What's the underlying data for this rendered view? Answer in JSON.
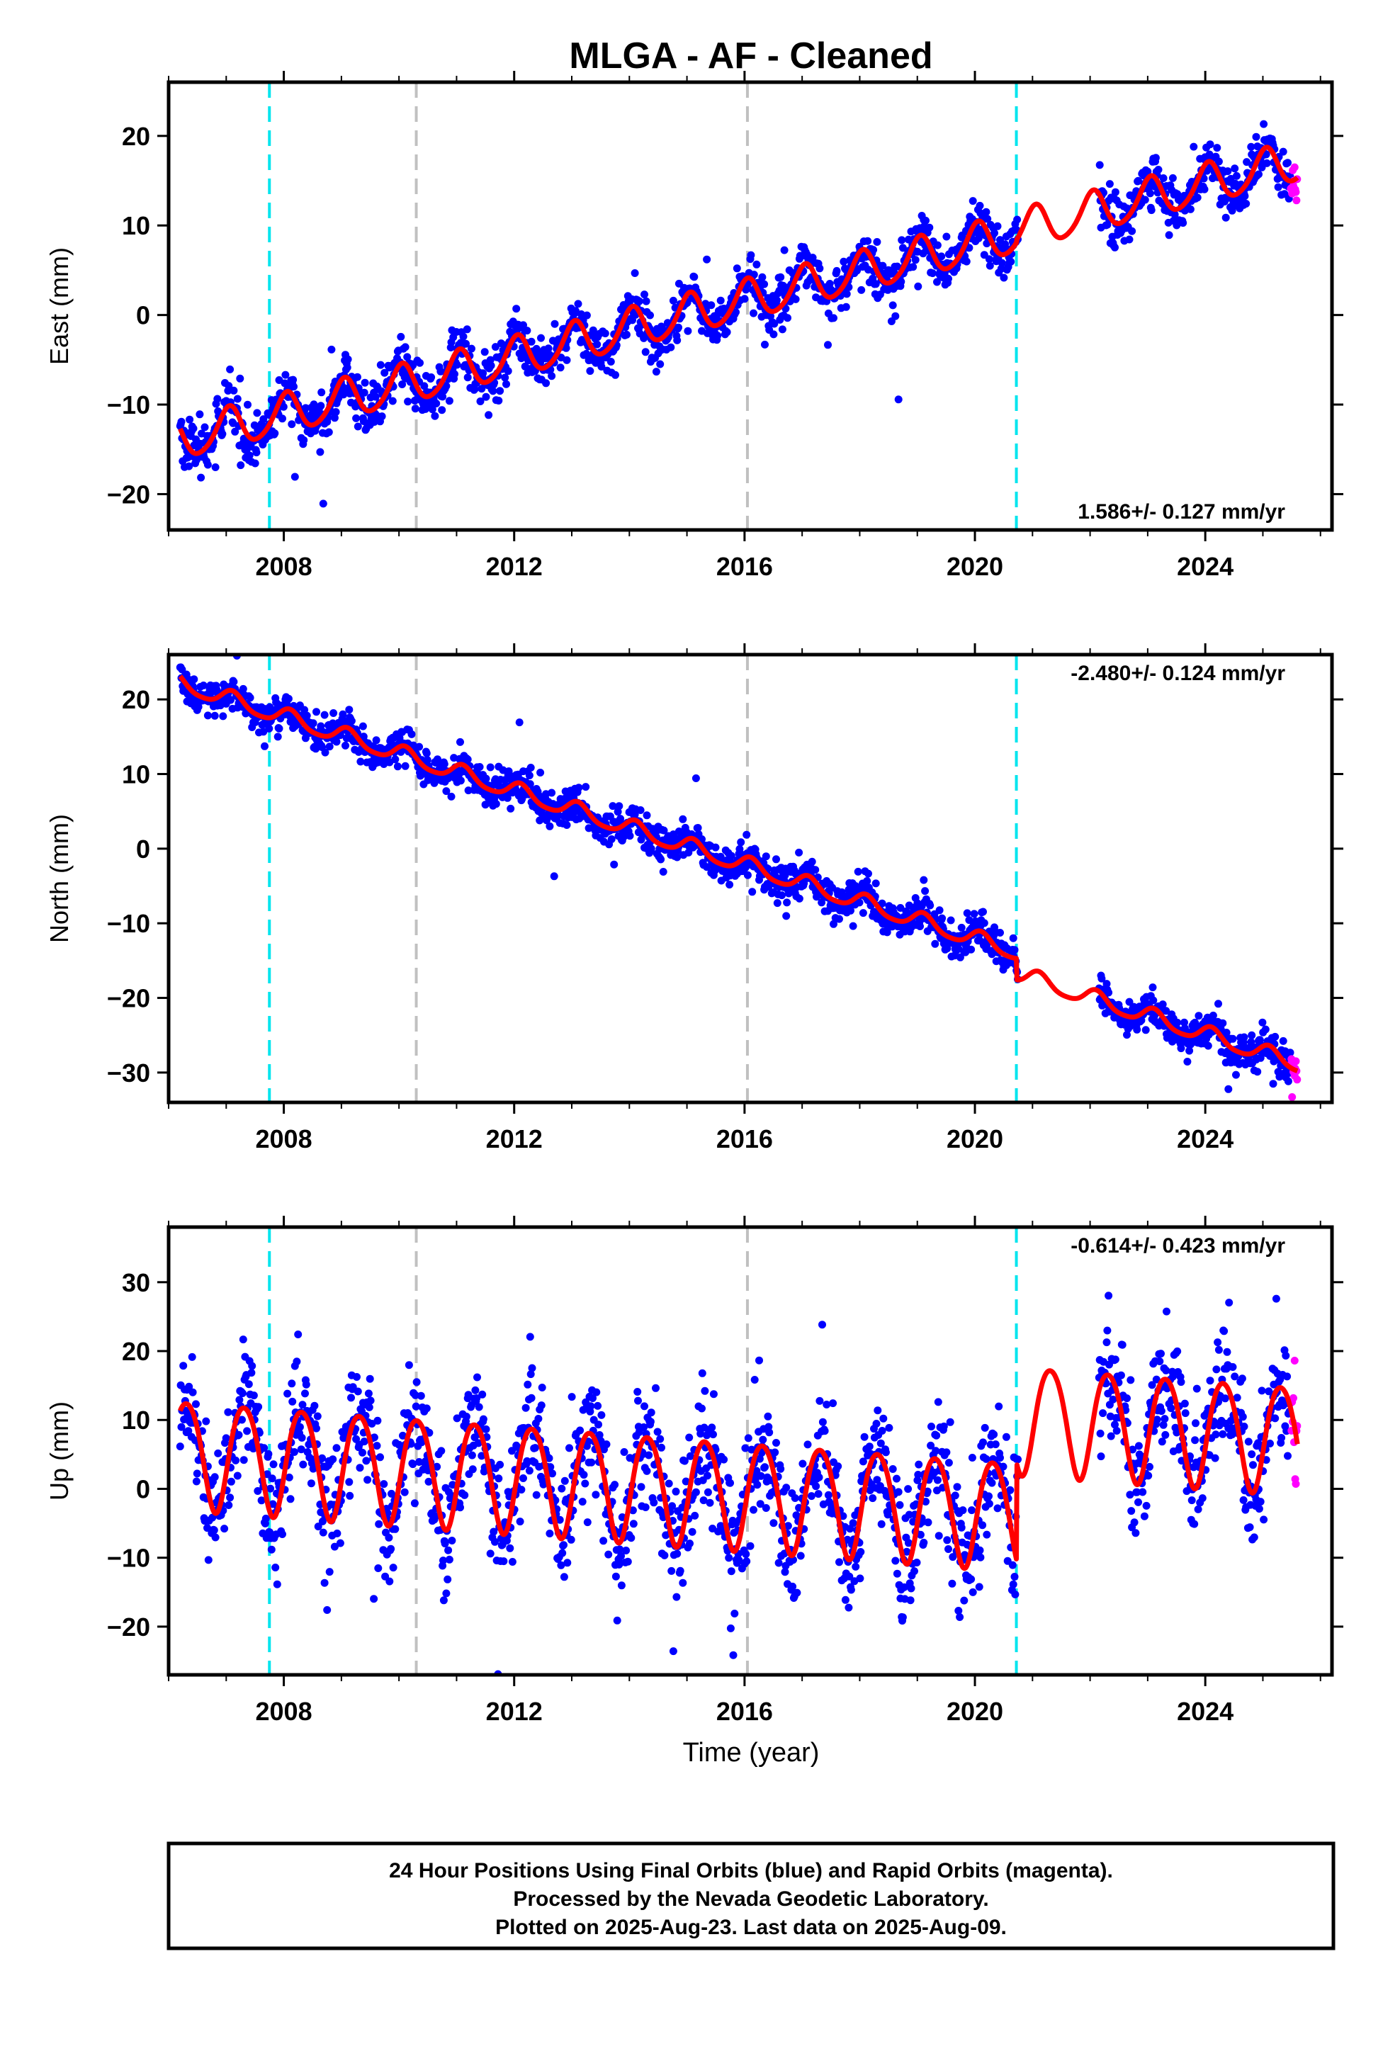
{
  "title": "MLGA  - AF - Cleaned",
  "footer": {
    "line1": "24 Hour Positions Using Final Orbits (blue) and Rapid Orbits (magenta).",
    "line2": "Processed by the Nevada Geodetic Laboratory.",
    "line3": "Plotted on 2025-Aug-23. Last data on 2025-Aug-09."
  },
  "colors": {
    "final_orbits": "#0000ff",
    "rapid_orbits": "#ff00ff",
    "model": "#ff0000",
    "equipment_change": "#00e5ee",
    "other_event": "#c0c0c0"
  },
  "chart_data": [
    {
      "type": "scatter",
      "component": "east",
      "ylabel": "East (mm)",
      "xlabel": "",
      "xlim": [
        2006.0,
        2026.2
      ],
      "ylim": [
        -24,
        26
      ],
      "xticks": [
        2008,
        2012,
        2016,
        2020,
        2024
      ],
      "yticks": [
        -20,
        -10,
        0,
        10,
        20
      ],
      "grid": false,
      "rate_label": "1.586+/- 0.127 mm/yr",
      "rate_label_position": "bottom-right",
      "rate_mm_per_yr": 1.586,
      "data_span": [
        2006.2,
        2025.6
      ],
      "data_gap": [
        2020.75,
        2022.15
      ],
      "rapid_start": 2025.48,
      "equipment_changes": [
        2007.75,
        2020.72
      ],
      "other_events": [
        2010.3,
        2016.05
      ],
      "model": {
        "ref_epoch": 2015.0,
        "offset_before": 0.0,
        "offset_after": 0.3,
        "step_epoch": 2020.72,
        "annual_amp": 2.2,
        "annual_phase": 1.3,
        "semiannual_amp": 0.3,
        "semiannual_phase": 0.5,
        "scatter_sd": 1.4
      },
      "series": [
        {
          "name": "Final Orbits",
          "color": "#0000ff"
        },
        {
          "name": "Rapid Orbits",
          "color": "#ff00ff"
        },
        {
          "name": "Model",
          "color": "#ff0000"
        }
      ]
    },
    {
      "type": "scatter",
      "component": "north",
      "ylabel": "North (mm)",
      "xlabel": "",
      "xlim": [
        2006.0,
        2026.2
      ],
      "ylim": [
        -34,
        26
      ],
      "xticks": [
        2008,
        2012,
        2016,
        2020,
        2024
      ],
      "yticks": [
        -30,
        -20,
        -10,
        0,
        10,
        20
      ],
      "grid": false,
      "rate_label": "-2.480+/- 0.124 mm/yr",
      "rate_label_position": "top-right",
      "rate_mm_per_yr": -2.48,
      "data_span": [
        2006.2,
        2025.6
      ],
      "data_gap": [
        2020.75,
        2022.15
      ],
      "rapid_start": 2025.48,
      "equipment_changes": [
        2007.75,
        2020.72
      ],
      "other_events": [
        2010.3,
        2016.05
      ],
      "model": {
        "ref_epoch": 2015.0,
        "offset_before": 0.3,
        "offset_after": -2.6,
        "step_epoch": 2020.72,
        "annual_amp": 1.1,
        "annual_phase": 0.9,
        "semiannual_amp": 0.2,
        "semiannual_phase": 0.3,
        "scatter_sd": 1.2
      },
      "series": [
        {
          "name": "Final Orbits",
          "color": "#0000ff"
        },
        {
          "name": "Rapid Orbits",
          "color": "#ff00ff"
        },
        {
          "name": "Model",
          "color": "#ff0000"
        }
      ]
    },
    {
      "type": "scatter",
      "component": "up",
      "ylabel": "Up (mm)",
      "xlabel": "Time (year)",
      "xlim": [
        2006.0,
        2026.2
      ],
      "ylim": [
        -27,
        38
      ],
      "xticks": [
        2008,
        2012,
        2016,
        2020,
        2024
      ],
      "yticks": [
        -20,
        -10,
        0,
        10,
        20,
        30
      ],
      "grid": false,
      "rate_label": "-0.614+/- 0.423 mm/yr",
      "rate_label_position": "top-right",
      "rate_mm_per_yr": -0.614,
      "data_span": [
        2006.2,
        2025.6
      ],
      "data_gap": [
        2020.75,
        2022.15
      ],
      "rapid_start": 2025.48,
      "equipment_changes": [
        2007.75,
        2020.72
      ],
      "other_events": [
        2010.3,
        2016.05
      ],
      "model": {
        "ref_epoch": 2015.0,
        "offset_before": 0.0,
        "offset_after": 14.0,
        "step_epoch": 2020.72,
        "annual_amp": 7.8,
        "annual_phase": -0.4,
        "semiannual_amp": 0.8,
        "semiannual_phase": 0.6,
        "scatter_sd": 4.5
      },
      "series": [
        {
          "name": "Final Orbits",
          "color": "#0000ff"
        },
        {
          "name": "Rapid Orbits",
          "color": "#ff00ff"
        },
        {
          "name": "Model",
          "color": "#ff0000"
        }
      ]
    }
  ]
}
